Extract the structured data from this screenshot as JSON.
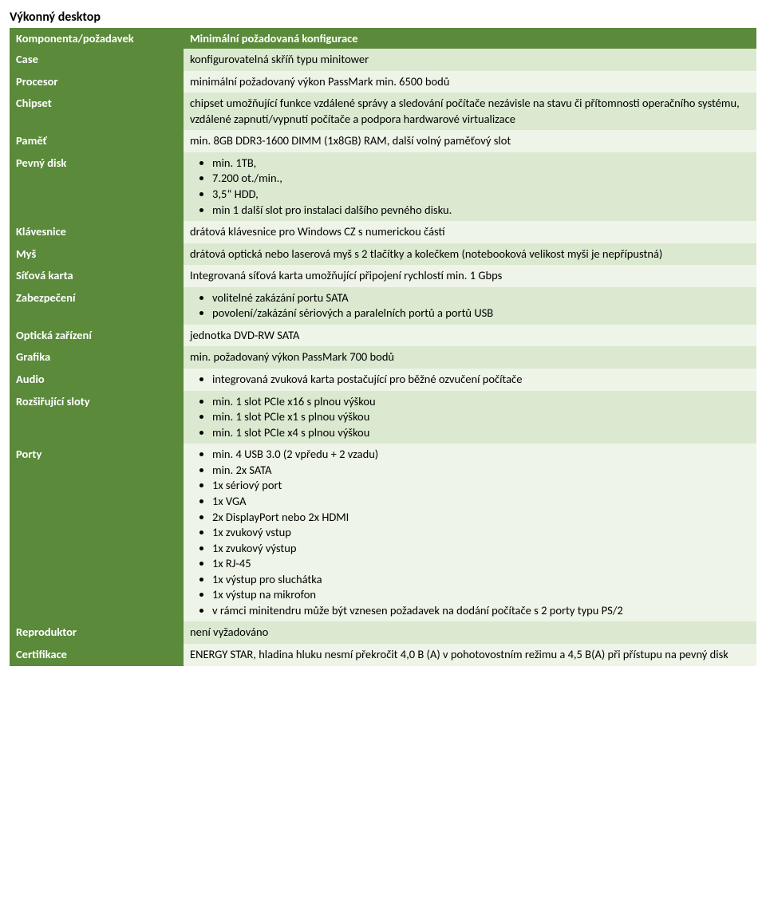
{
  "colors": {
    "header_bg": "#5a8a3a",
    "left_bg": "#5a8a3a",
    "odd_bg": "#dbe9d0",
    "even_bg": "#eef4e8",
    "text_light": "#ffffff",
    "text_dark": "#000000"
  },
  "title": "Výkonný desktop",
  "header": {
    "col1": "Komponenta/požadavek",
    "col2": "Minimální požadovaná konfigurace"
  },
  "rows": [
    {
      "band": "odd",
      "label": "Case",
      "type": "text",
      "text": "konfigurovatelná skříň typu minitower"
    },
    {
      "band": "even",
      "label": "Procesor",
      "type": "text",
      "text": "minimální požadovaný výkon PassMark min. 6500 bodů"
    },
    {
      "band": "odd",
      "label": "Chipset",
      "type": "text",
      "text": "chipset umožňující funkce vzdálené správy a sledování počítače nezávisle na stavu či přítomnosti operačního systému, vzdálené zapnutí/vypnutí počítače a podpora hardwarové virtualizace"
    },
    {
      "band": "even",
      "label": "Paměť",
      "type": "text",
      "text": "min. 8GB DDR3-1600 DIMM (1x8GB) RAM, další volný paměťový slot"
    },
    {
      "band": "odd",
      "label": "Pevný disk",
      "type": "list",
      "items": [
        "min. 1TB,",
        "7.200 ot./min.,",
        "3,5“ HDD,",
        "min 1 další slot pro instalaci dalšího pevného disku."
      ]
    },
    {
      "band": "even",
      "label": "Klávesnice",
      "type": "text",
      "text": "drátová klávesnice pro Windows CZ s numerickou částí"
    },
    {
      "band": "odd",
      "label": "Myš",
      "type": "text",
      "text": "drátová optická nebo laserová myš s 2 tlačítky a kolečkem (notebooková velikost myši je nepřípustná)"
    },
    {
      "band": "even",
      "label": "Síťová karta",
      "type": "text",
      "text": "Integrovaná síťová karta umožňující připojení rychlostí min. 1 Gbps"
    },
    {
      "band": "odd",
      "label": "Zabezpečení",
      "type": "list",
      "items": [
        "volitelné zakázání portu SATA",
        "povolení/zakázání sériových a paralelních portů a portů USB"
      ]
    },
    {
      "band": "even",
      "label": "Optická zařízení",
      "type": "text",
      "text": "jednotka DVD-RW SATA"
    },
    {
      "band": "odd",
      "label": "Grafika",
      "type": "text",
      "text": "min. požadovaný výkon PassMark 700 bodů"
    },
    {
      "band": "even",
      "label": "Audio",
      "type": "list",
      "items": [
        "integrovaná zvuková karta postačující pro běžné ozvučení počítače"
      ]
    },
    {
      "band": "odd",
      "label": "Rozšiřující sloty",
      "type": "list",
      "items": [
        "min. 1 slot PCIe x16 s plnou výškou",
        "min. 1 slot PCIe x1 s plnou výškou",
        "min. 1 slot PCIe x4 s plnou výškou"
      ]
    },
    {
      "band": "even",
      "label": "Porty",
      "type": "list",
      "items": [
        "min. 4 USB 3.0 (2 vpředu + 2 vzadu)",
        "min. 2x SATA",
        "1x sériový port",
        "1x VGA",
        "2x DisplayPort nebo 2x HDMI",
        "1x zvukový vstup",
        "1x zvukový výstup",
        "1x RJ-45",
        "1x výstup pro sluchátka",
        "1x výstup na mikrofon",
        "v rámci minitendru může být vznesen požadavek na dodání počítače s 2 porty typu PS/2"
      ]
    },
    {
      "band": "odd",
      "label": "Reproduktor",
      "type": "text",
      "text": "není vyžadováno"
    },
    {
      "band": "even",
      "label": "Certifikace",
      "type": "text",
      "text": "ENERGY STAR, hladina hluku nesmí překročit 4,0 B (A) v pohotovostním režimu a 4,5 B(A) při přístupu na pevný disk"
    }
  ]
}
